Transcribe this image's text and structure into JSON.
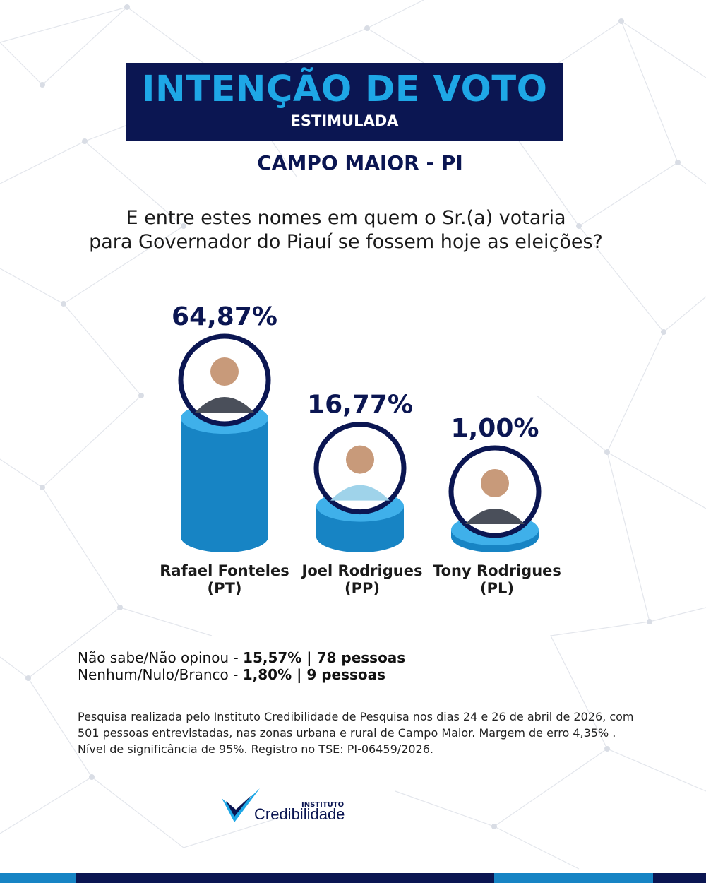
{
  "header": {
    "title": "INTENÇÃO DE VOTO",
    "subtitle": "ESTIMULADA",
    "location": "CAMPO MAIOR - PI"
  },
  "question": {
    "line1": "E entre estes nomes em quem o Sr.(a) votaria",
    "line2": "para Governador do Piauí se fossem hoje as eleições?"
  },
  "chart_data": {
    "type": "bar",
    "categories": [
      "Rafael Fonteles (PT)",
      "Joel Rodrigues (PP)",
      "Tony Rodrigues (PL)"
    ],
    "values": [
      64.87,
      16.77,
      1.0
    ],
    "value_labels": [
      "64,87%",
      "16,77%",
      "1,00%"
    ],
    "candidates": [
      {
        "name": "Rafael Fonteles",
        "party": "(PT)"
      },
      {
        "name": "Joel Rodrigues",
        "party": "(PP)"
      },
      {
        "name": "Tony Rodrigues",
        "party": "(PL)"
      }
    ],
    "colors": {
      "bar": "#1784c4",
      "bar_top": "#3fb0ea",
      "label": "#0b1652"
    }
  },
  "summary": [
    {
      "label": "Não sabe/Não opinou - ",
      "value": "15,57% | 78 pessoas"
    },
    {
      "label": "Nenhum/Nulo/Branco - ",
      "value": "1,80% | 9 pessoas"
    }
  ],
  "footnote": "Pesquisa realizada pelo  Instituto Credibilidade de Pesquisa nos dias 24 e 26 de abril de 2026, com 501 pessoas entrevistadas, nas zonas urbana e rural de Campo Maior. Margem de erro 4,35% . Nível de significância de 95%. Registro no TSE:  PI-06459/2026.",
  "logo": {
    "small": "INSTITUTO",
    "big": "Credibilidade"
  },
  "theme": {
    "navy": "#0b1652",
    "cyan": "#1ea7e6"
  }
}
